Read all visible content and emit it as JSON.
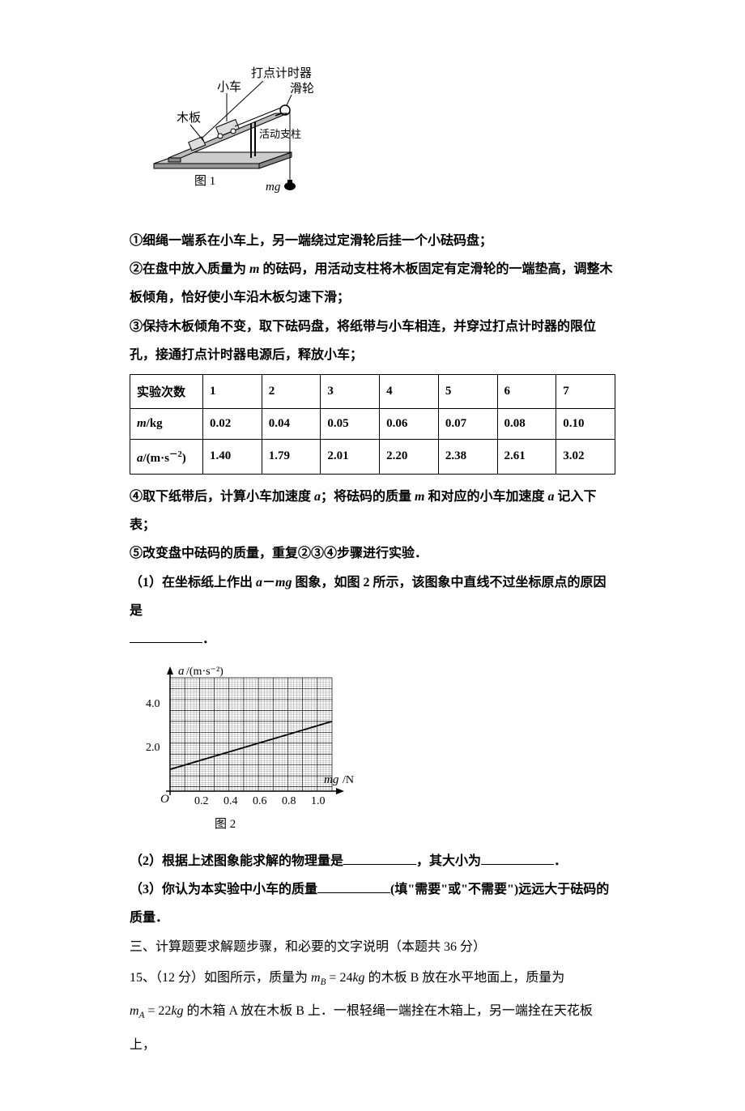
{
  "figure1": {
    "labels": {
      "timer": "打点计时器",
      "cart": "小车",
      "pulley": "滑轮",
      "board": "木板",
      "support": "活动支柱",
      "caption": "图 1",
      "weight": "mg"
    },
    "colors": {
      "stroke": "#000000",
      "fill_light": "#bfbfbf",
      "fill_dark": "#808080"
    }
  },
  "procedure": {
    "step1": "①细绳一端系在小车上，另一端绕过定滑轮后挂一个小砝码盘；",
    "step2_a": "②在盘中放入质量为 ",
    "step2_b": " 的砝码，用活动支柱将木板固定有定滑轮的一端垫高，调整木板倾角，恰好使小车沿木板匀速下滑；",
    "step3": "③保持木板倾角不变，取下砝码盘，将纸带与小车相连，并穿过打点计时器的限位孔，接通打点计时器电源后，释放小车；"
  },
  "table": {
    "headers": {
      "trial": "实验次数",
      "mass": "m/kg",
      "accel_a": "a",
      "accel_unit": "/(m·s",
      "accel_exp": "－2",
      "accel_close": ")"
    },
    "trials": [
      "1",
      "2",
      "3",
      "4",
      "5",
      "6",
      "7"
    ],
    "mass": [
      "0.02",
      "0.04",
      "0.05",
      "0.06",
      "0.07",
      "0.08",
      "0.10"
    ],
    "accel": [
      "1.40",
      "1.79",
      "2.01",
      "2.20",
      "2.38",
      "2.61",
      "3.02"
    ]
  },
  "post_table": {
    "step4_a": "④取下纸带后，计算小车加速度 ",
    "step4_b": "；将砝码的质量 ",
    "step4_c": " 和对应的小车加速度 ",
    "step4_d": " 记入下表；",
    "step5": "⑤改变盘中砝码的质量，重复②③④步骤进行实验．"
  },
  "questions": {
    "q1_a": "（1）在坐标纸上作出 ",
    "q1_b": "－",
    "q1_c": " 图象，如图 2 所示，该图象中直线不过坐标原点的原因是",
    "q1_blank_end": "．",
    "q2_a": "（2）根据上述图象能求解的物理量是",
    "q2_b": "，其大小为",
    "q2_c": "．",
    "q3_a": "（3）你认为本实验中小车的质量",
    "q3_b": "(填\"需要\"或\"不需要\")远远大于砝码的质量．"
  },
  "figure2": {
    "ylabel_a": "a",
    "ylabel_unit": "/(m·s⁻²)",
    "xlabel": "mg/N",
    "origin": "O",
    "caption": "图 2",
    "yticks": [
      "2.0",
      "4.0"
    ],
    "xticks": [
      "0.2",
      "0.4",
      "0.6",
      "0.8",
      "1.0"
    ],
    "xlim": [
      0,
      1.1
    ],
    "ylim": [
      0,
      5.2
    ],
    "grid_major_color": "#000000",
    "grid_minor_color": "#808080",
    "background": "#ffffff",
    "line_start": [
      0,
      1.0
    ],
    "line_end": [
      1.1,
      3.2
    ],
    "axis_fontsize": 14
  },
  "section3": {
    "header": "三、计算题要求解题步骤，和必要的文字说明（本题共 36 分）",
    "q15_a": "15、（12 分）如图所示，质量为",
    "q15_mB_sym": "m",
    "q15_mB_sub": "B",
    "q15_mB_eq": " = 24",
    "q15_mB_unit": "kg",
    "q15_b": " 的木板 B 放在水平地面上，质量为",
    "q15_mA_sym": "m",
    "q15_mA_sub": "A",
    "q15_mA_eq": " = 22",
    "q15_mA_unit": "kg",
    "q15_c": " 的木箱 A 放在木板 B 上．一根轻绳一端拴在木箱上，另一端拴在天花板上，"
  }
}
